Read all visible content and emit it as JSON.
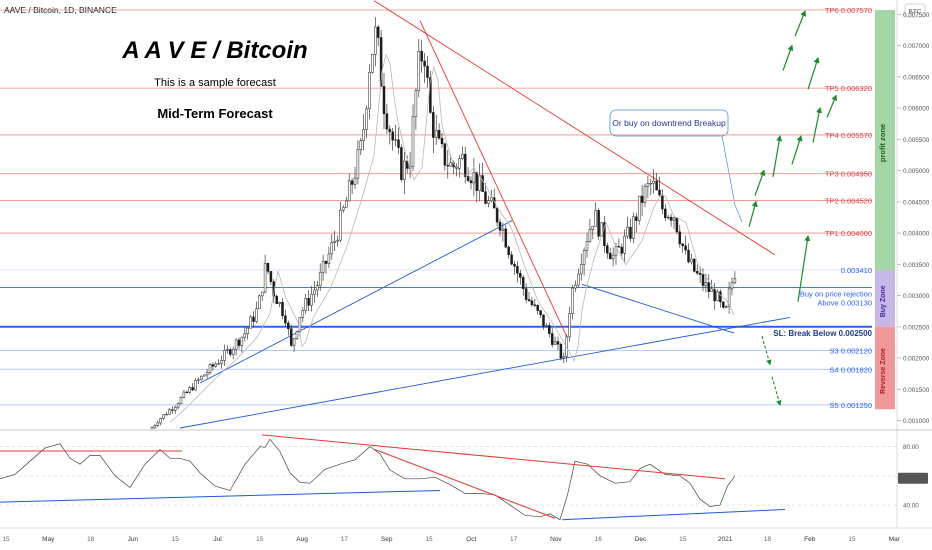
{
  "header": {
    "symbol_line": "AAVE / Bitcoin, 1D, BINANCE",
    "currency_badge": "BTC"
  },
  "annotations": {
    "title": "A A V E / Bitcoin",
    "subtitle": "This is a sample forecast",
    "horizon": "Mid-Term Forecast",
    "callout": "Or buy on downtrend Breakup",
    "buy_note_line1": "Buy on price rejection",
    "buy_note_line2": "Above 0.003130",
    "stop_loss": "SL: Break Below 0.002500"
  },
  "zones": {
    "profit": "profit zone",
    "buy": "Buy Zone",
    "reverse": "Reverse Zone"
  },
  "colors": {
    "target_line": "#f28b82",
    "support_line": "#2962ff",
    "trend_red": "#e53935",
    "trend_blue": "#1e5bd6",
    "arrow_green": "#1b8a2a",
    "profit_zone": "#a5d6a7",
    "buy_zone": "#c7b8e8",
    "reverse_zone": "#ef9a9a"
  },
  "chart_data": [
    {
      "type": "candlestick",
      "x_axis_labels": [
        "15",
        "May",
        "18",
        "Jun",
        "15",
        "Jul",
        "15",
        "Aug",
        "17",
        "Sep",
        "15",
        "Oct",
        "17",
        "Nov",
        "16",
        "Dec",
        "15",
        "2021",
        "18",
        "Feb",
        "15",
        "Mar"
      ],
      "y_ticks": [
        "0.007500",
        "0.007000",
        "0.006500",
        "0.006000",
        "0.005500",
        "0.005000",
        "0.004500",
        "0.004000",
        "0.003500",
        "0.003000",
        "0.002500",
        "0.002000",
        "0.001500",
        "0.001000"
      ],
      "ylim": [
        0.00088,
        0.00773
      ],
      "last_price": "0.003410",
      "targets": [
        {
          "label": "TP6 0.007570",
          "value": 0.00757
        },
        {
          "label": "TP5 0.006320",
          "value": 0.00632
        },
        {
          "label": "TP4 0.005570",
          "value": 0.00557
        },
        {
          "label": "TP3 0.004950",
          "value": 0.00495
        },
        {
          "label": "TP2 0.004520",
          "value": 0.00452
        },
        {
          "label": "TP1 0.004000",
          "value": 0.004
        }
      ],
      "buy_level": {
        "value": 0.00313
      },
      "stop_level": {
        "value": 0.0025
      },
      "supports": [
        {
          "label": "S3 0.002120",
          "value": 0.00212
        },
        {
          "label": "S4 0.001820",
          "value": 0.00182
        },
        {
          "label": "S5 0.001250",
          "value": 0.00125
        }
      ]
    },
    {
      "type": "line",
      "y_ticks": [
        "80.00",
        "60.00",
        "40.00"
      ],
      "ylim": [
        25,
        90
      ],
      "levels": [
        80,
        60,
        40
      ]
    }
  ]
}
